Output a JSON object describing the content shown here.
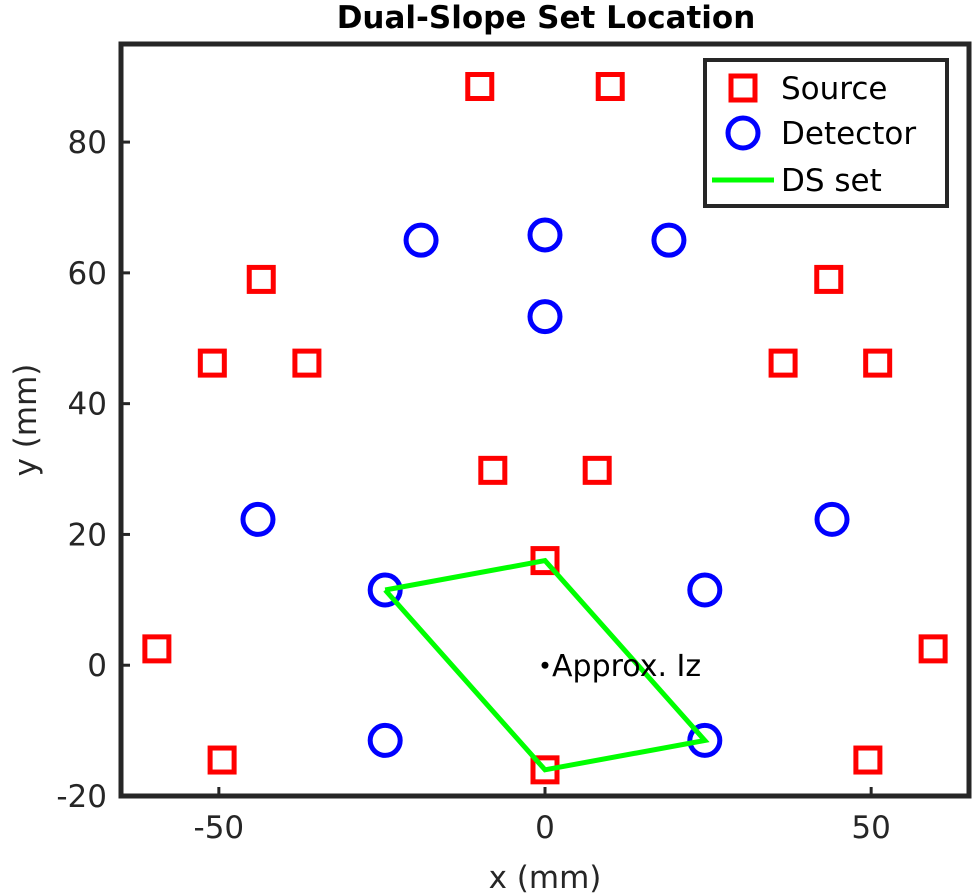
{
  "chart_data": {
    "type": "scatter",
    "title": "Dual-Slope Set Location",
    "xlabel": "x (mm)",
    "ylabel": "y (mm)",
    "xlim": [
      -65,
      65
    ],
    "ylim": [
      -20,
      95
    ],
    "xticks": [
      -50,
      0,
      50
    ],
    "yticks": [
      -20,
      0,
      20,
      40,
      60,
      80
    ],
    "grid": false,
    "legend_position": "top-right",
    "series": [
      {
        "name": "Source",
        "marker": "square",
        "color": "#ff0000",
        "points": [
          [
            -10,
            88.5
          ],
          [
            10,
            88.5
          ],
          [
            -43.5,
            59
          ],
          [
            43.5,
            59
          ],
          [
            -51,
            46.2
          ],
          [
            -36.5,
            46.2
          ],
          [
            36.5,
            46.2
          ],
          [
            51,
            46.2
          ],
          [
            -8,
            29.8
          ],
          [
            8,
            29.8
          ],
          [
            0,
            16
          ],
          [
            -59.5,
            2.5
          ],
          [
            59.5,
            2.5
          ],
          [
            -49.5,
            -14.5
          ],
          [
            49.5,
            -14.5
          ],
          [
            0,
            -16
          ]
        ]
      },
      {
        "name": "Detector",
        "marker": "circle",
        "color": "#0000ff",
        "points": [
          [
            -19,
            65
          ],
          [
            0,
            65.8
          ],
          [
            19,
            65
          ],
          [
            0,
            53.3
          ],
          [
            -44,
            22.3
          ],
          [
            44,
            22.3
          ],
          [
            -24.5,
            11.5
          ],
          [
            24.5,
            11.5
          ],
          [
            -24.5,
            -11.5
          ],
          [
            24.5,
            -11.5
          ]
        ]
      },
      {
        "name": "DS set",
        "marker": "line",
        "color": "#00ff00",
        "points": [
          [
            -24.5,
            11.5
          ],
          [
            0,
            16
          ],
          [
            24.5,
            -11.5
          ],
          [
            0,
            -16
          ],
          [
            -24.5,
            11.5
          ]
        ]
      }
    ],
    "annotations": [
      {
        "text": "Approx. Iz",
        "x": 0,
        "y": 0
      }
    ]
  }
}
